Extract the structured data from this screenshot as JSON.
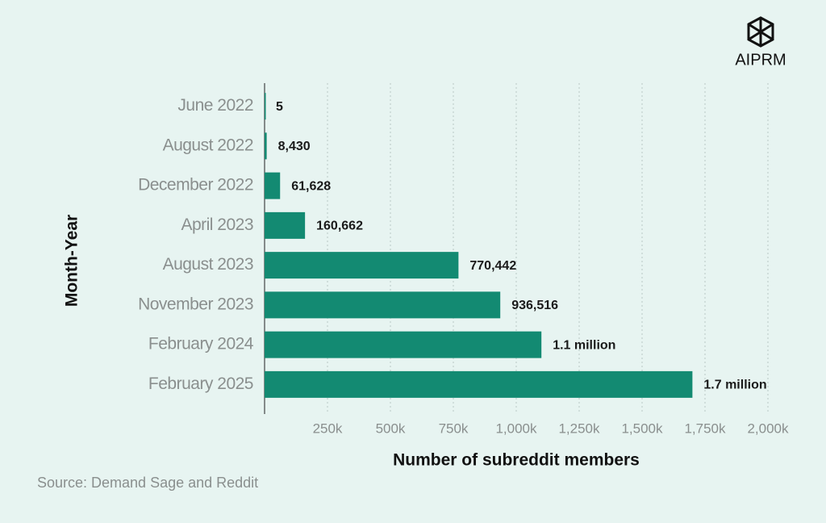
{
  "chart_data": {
    "type": "bar",
    "orientation": "horizontal",
    "categories": [
      "June 2022",
      "August 2022",
      "December 2022",
      "April 2023",
      "August 2023",
      "November 2023",
      "February 2024",
      "February 2025"
    ],
    "values": [
      5,
      8430,
      61628,
      160662,
      770442,
      936516,
      1100000,
      1700000
    ],
    "value_labels": [
      "5",
      "8,430",
      "61,628",
      "160,662",
      "770,442",
      "936,516",
      "1.1 million",
      "1.7 million"
    ],
    "color": "#138a72",
    "xlim": [
      0,
      2000000
    ],
    "xticks": [
      {
        "value": 250000,
        "label": "250k"
      },
      {
        "value": 500000,
        "label": "500k"
      },
      {
        "value": 750000,
        "label": "750k"
      },
      {
        "value": 1000000,
        "label": "1,000k"
      },
      {
        "value": 1250000,
        "label": "1,250k"
      },
      {
        "value": 1500000,
        "label": "1,500k"
      },
      {
        "value": 1750000,
        "label": "1,750k"
      },
      {
        "value": 2000000,
        "label": "2,000k"
      }
    ],
    "grid": true,
    "x_label": "Number of subreddit members",
    "y_label": "Month-Year",
    "source": "Source:  Demand Sage and Reddit",
    "brand": "AIPRM"
  }
}
